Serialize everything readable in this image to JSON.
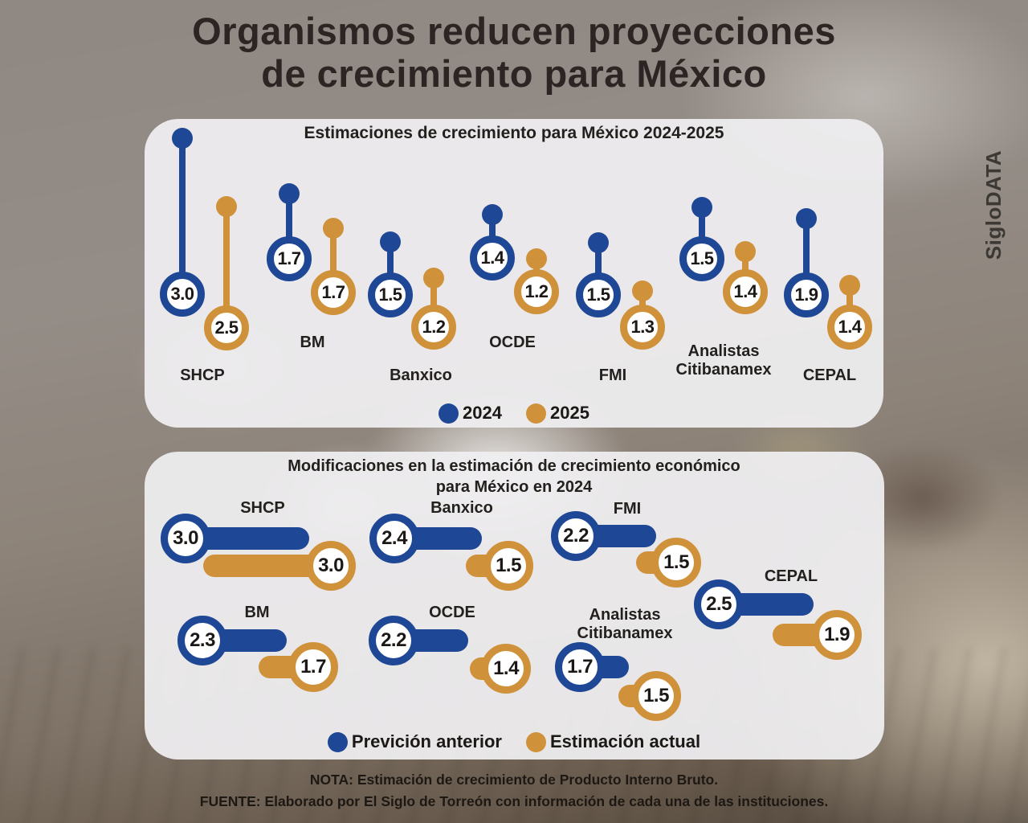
{
  "header": {
    "title_lines": [
      "Organismos reducen proyecciones",
      "de crecimiento para México"
    ]
  },
  "branding": {
    "label": "SigloDATA"
  },
  "colors": {
    "blue": "#1e4796",
    "orange": "#cf9139",
    "panel": "#efeef0",
    "text_dark": "#2c2523"
  },
  "chart_data": [
    {
      "type": "lollipop",
      "orientation": "vertical",
      "title": "Estimaciones de crecimiento para México 2024-2025",
      "title_lines": [
        "Estimaciones de crecimiento para México 2024-2025"
      ],
      "categories": [
        "SHCP",
        "BM",
        "Banxico",
        "OCDE",
        "FMI",
        "Analistas Citibanamex",
        "CEPAL"
      ],
      "series": [
        {
          "name": "2024",
          "color": "#1e4796",
          "values": [
            "3.0",
            "1.7",
            "1.5",
            "1.4",
            "1.5",
            "1.5",
            "1.9"
          ]
        },
        {
          "name": "2025",
          "color": "#cf9139",
          "values": [
            "2.5",
            "1.7",
            "1.2",
            "1.2",
            "1.3",
            "1.4",
            "1.4"
          ]
        }
      ],
      "legend_position": "bottom",
      "grid": false
    },
    {
      "type": "lollipop",
      "orientation": "horizontal",
      "title": "Modificaciones en la estimación de crecimiento económico para México en 2024",
      "title_lines": [
        "Modificaciones en la estimación de crecimiento económico",
        "para México en 2024"
      ],
      "categories": [
        "SHCP",
        "Banxico",
        "FMI",
        "CEPAL",
        "BM",
        "OCDE",
        "Analistas Citibanamex"
      ],
      "series": [
        {
          "name": "Previción anterior",
          "color": "#1e4796",
          "values": [
            "3.0",
            "2.4",
            "2.2",
            "2.5",
            "2.3",
            "2.2",
            "1.7"
          ]
        },
        {
          "name": "Estimación actual",
          "color": "#cf9139",
          "values": [
            "3.0",
            "1.5",
            "1.5",
            "1.9",
            "1.7",
            "1.4",
            "1.5"
          ]
        }
      ],
      "legend_position": "bottom",
      "grid": false
    }
  ],
  "footer": {
    "nota": "NOTA: Estimación de crecimiento de Producto Interno Bruto.",
    "fuente": "FUENTE: Elaborado por El Siglo de Torreón con información de cada una de las instituciones."
  }
}
